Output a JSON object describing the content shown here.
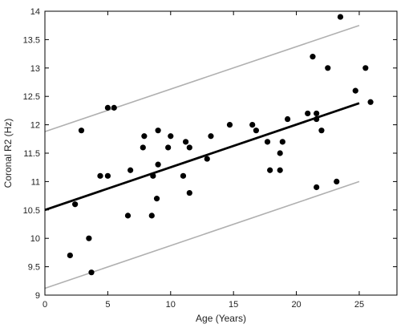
{
  "chart_data": {
    "type": "scatter",
    "title": "",
    "xlabel": "Age (Years)",
    "ylabel": "Coronal R2 (Hz)",
    "xlim": [
      0,
      28
    ],
    "ylim": [
      9,
      14
    ],
    "grid": false,
    "legend": "none",
    "x_ticks": [
      "0",
      "5",
      "10",
      "15",
      "20",
      "25"
    ],
    "y_ticks": [
      "9",
      "9.5",
      "10",
      "10.5",
      "11",
      "11.5",
      "12",
      "12.5",
      "13",
      "13.5",
      "14"
    ],
    "colors": {
      "points": "#000000",
      "fit": "#000000",
      "bounds": "#b0b0b0"
    },
    "points": [
      [
        2.0,
        9.7
      ],
      [
        2.4,
        10.6
      ],
      [
        2.9,
        11.9
      ],
      [
        3.5,
        10.0
      ],
      [
        3.7,
        9.4
      ],
      [
        4.4,
        11.1
      ],
      [
        5.0,
        12.3
      ],
      [
        5.0,
        11.1
      ],
      [
        5.5,
        12.3
      ],
      [
        6.6,
        10.4
      ],
      [
        6.8,
        11.2
      ],
      [
        7.8,
        11.6
      ],
      [
        7.9,
        11.8
      ],
      [
        8.5,
        10.4
      ],
      [
        8.6,
        11.1
      ],
      [
        8.9,
        10.7
      ],
      [
        9.0,
        11.9
      ],
      [
        9.0,
        11.3
      ],
      [
        9.8,
        11.6
      ],
      [
        10.0,
        11.8
      ],
      [
        11.0,
        11.1
      ],
      [
        11.2,
        11.7
      ],
      [
        11.5,
        10.8
      ],
      [
        11.5,
        11.6
      ],
      [
        12.9,
        11.4
      ],
      [
        13.2,
        11.8
      ],
      [
        14.7,
        12.0
      ],
      [
        16.5,
        12.0
      ],
      [
        16.8,
        11.9
      ],
      [
        17.7,
        11.7
      ],
      [
        17.9,
        11.2
      ],
      [
        18.7,
        11.2
      ],
      [
        18.7,
        11.5
      ],
      [
        18.9,
        11.7
      ],
      [
        19.3,
        12.1
      ],
      [
        20.9,
        12.2
      ],
      [
        21.3,
        13.2
      ],
      [
        21.6,
        12.2
      ],
      [
        21.6,
        12.1
      ],
      [
        21.6,
        10.9
      ],
      [
        22.0,
        11.9
      ],
      [
        22.5,
        13.0
      ],
      [
        23.2,
        11.0
      ],
      [
        23.5,
        13.9
      ],
      [
        24.7,
        12.6
      ],
      [
        25.5,
        13.0
      ],
      [
        25.9,
        12.4
      ]
    ],
    "lines": [
      {
        "role": "fit",
        "x": [
          0,
          25
        ],
        "y": [
          10.5,
          12.38
        ]
      },
      {
        "role": "upper-bound",
        "x": [
          0,
          25
        ],
        "y": [
          11.88,
          13.75
        ]
      },
      {
        "role": "lower-bound",
        "x": [
          0,
          25
        ],
        "y": [
          9.12,
          11.0
        ]
      }
    ]
  }
}
